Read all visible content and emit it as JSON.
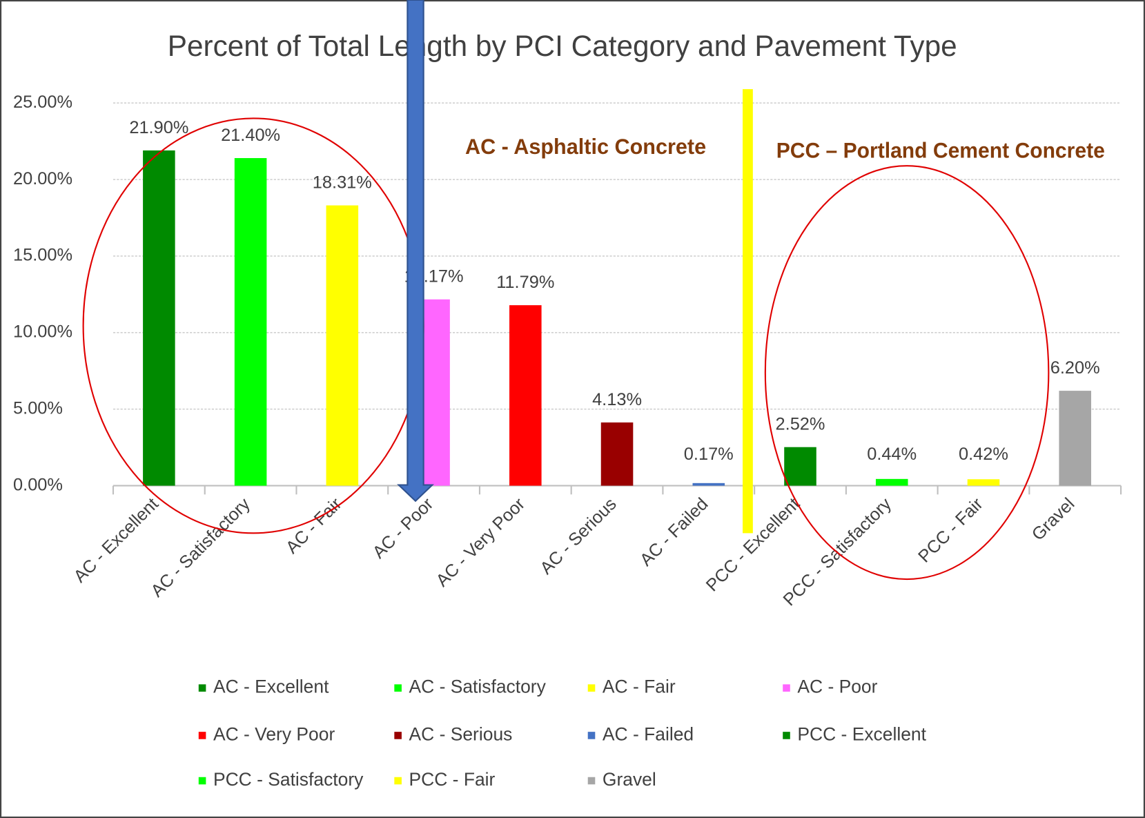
{
  "chart_data": {
    "type": "bar",
    "title": "Percent of Total Length by PCI Category and Pavement Type",
    "categories": [
      "AC - Excellent",
      "AC - Satisfactory",
      "AC - Fair",
      "AC - Poor",
      "AC - Very Poor",
      "AC - Serious",
      "AC - Failed",
      "PCC - Excellent",
      "PCC - Satisfactory",
      "PCC - Fair",
      "Gravel"
    ],
    "values": [
      21.9,
      21.4,
      18.31,
      12.17,
      11.79,
      4.13,
      0.17,
      2.52,
      0.44,
      0.42,
      6.2
    ],
    "value_labels": [
      "21.90%",
      "21.40%",
      "18.31%",
      "12.17%",
      "11.79%",
      "4.13%",
      "0.17%",
      "2.52%",
      "0.44%",
      "0.42%",
      "6.20%"
    ],
    "colors": [
      "#008a00",
      "#00ff00",
      "#ffff00",
      "#ff66ff",
      "#ff0000",
      "#990000",
      "#4472c4",
      "#008a00",
      "#00ff00",
      "#ffff00",
      "#a6a6a6"
    ],
    "ylim": [
      0,
      25
    ],
    "yticks": [
      {
        "value": 0,
        "label": "0.00%"
      },
      {
        "value": 5,
        "label": "5.00%"
      },
      {
        "value": 10,
        "label": "10.00%"
      },
      {
        "value": 15,
        "label": "15.00%"
      },
      {
        "value": 20,
        "label": "20.00%"
      },
      {
        "value": 25,
        "label": "25.00%"
      }
    ],
    "grid": true,
    "legend": "bottom",
    "annotations": [
      "AC - Asphaltic Concrete",
      "PCC – Portland Cement Concrete"
    ]
  }
}
